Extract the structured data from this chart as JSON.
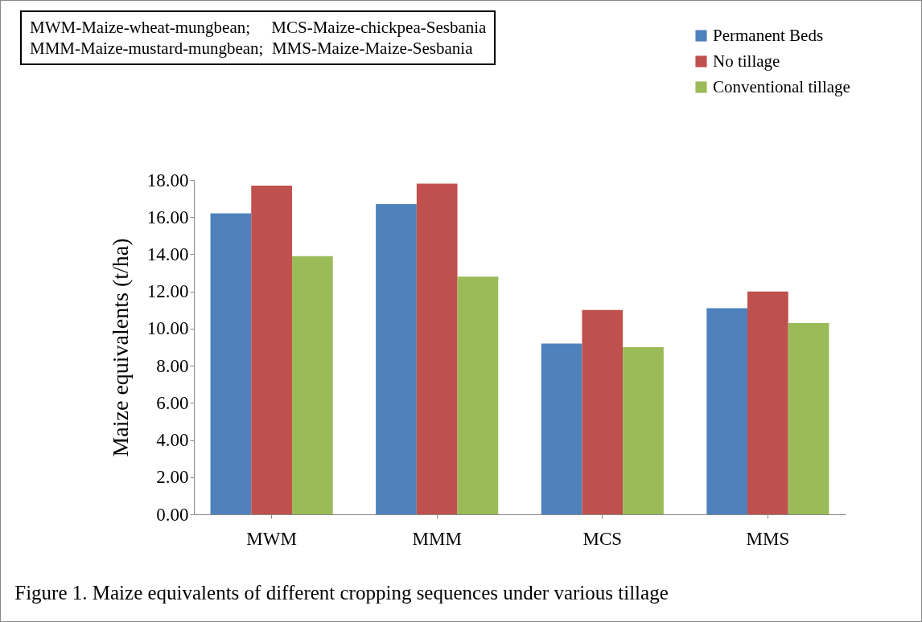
{
  "chart_data": {
    "type": "bar",
    "title": "Figure 1. Maize equivalents of different cropping sequences under various tillage",
    "ylabel": "Maize equivalents (t/ha)",
    "annotations": [
      "MWM-Maize-wheat-mungbean;     MCS-Maize-chickpea-Sesbania",
      "MMM-Maize-mustard-mungbean;  MMS-Maize-Maize-Sesbania"
    ],
    "categories": [
      "MWM",
      "MMM",
      "MCS",
      "MMS"
    ],
    "series": [
      {
        "name": "Permanent Beds",
        "color": "#4f81bd",
        "values": [
          16.2,
          16.7,
          9.2,
          11.1
        ]
      },
      {
        "name": "No tillage",
        "color": "#c0504d",
        "values": [
          17.7,
          17.8,
          11.0,
          12.0
        ]
      },
      {
        "name": "Conventional tillage",
        "color": "#9bbb59",
        "values": [
          13.9,
          12.8,
          9.0,
          10.3
        ]
      }
    ],
    "ylim": [
      0,
      18
    ],
    "yticks": [
      {
        "value": 0,
        "label": "0.00"
      },
      {
        "value": 2,
        "label": "2.00"
      },
      {
        "value": 4,
        "label": "4.00"
      },
      {
        "value": 6,
        "label": "6.00"
      },
      {
        "value": 8,
        "label": "8.00"
      },
      {
        "value": 10,
        "label": "10.00"
      },
      {
        "value": 12,
        "label": "12.00"
      },
      {
        "value": 14,
        "label": "14.00"
      },
      {
        "value": 16,
        "label": "16.00"
      },
      {
        "value": 18,
        "label": "18.00"
      }
    ],
    "grid": false,
    "legend": "top right"
  }
}
